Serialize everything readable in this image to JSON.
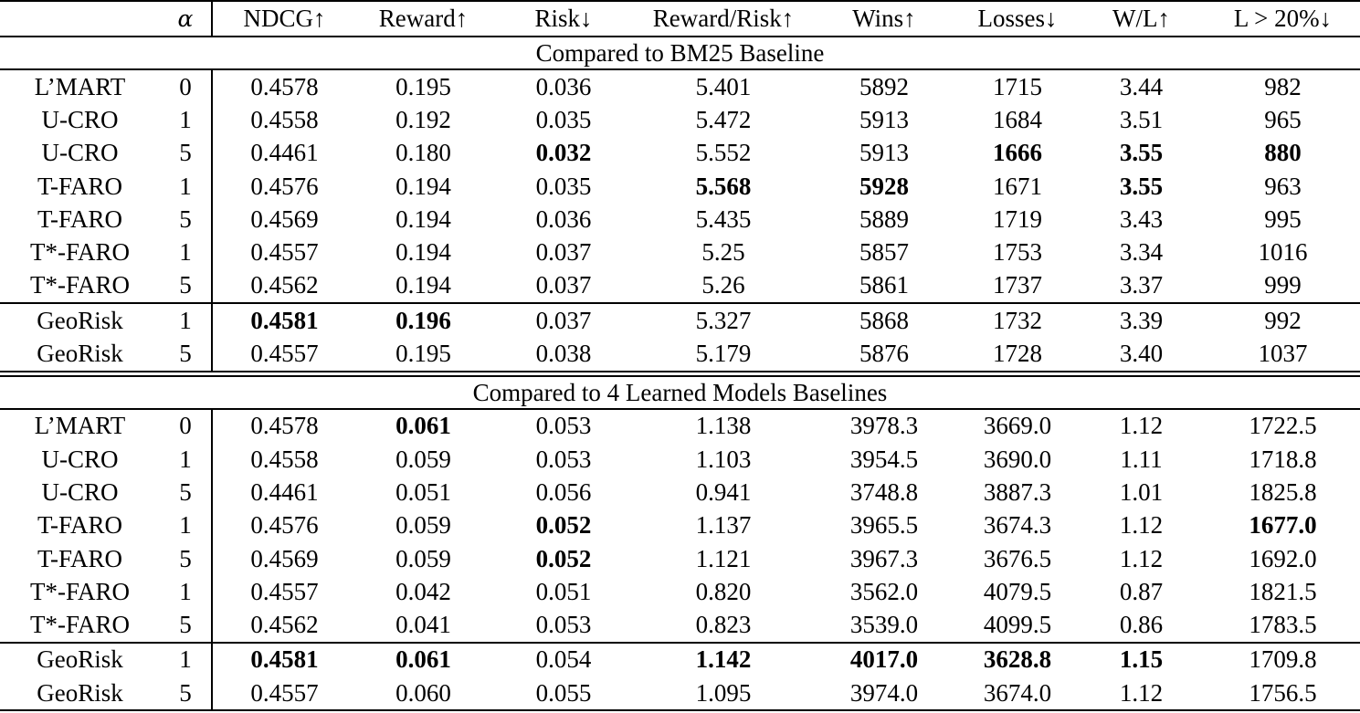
{
  "table": {
    "columns": [
      "",
      "α",
      "NDCG↑",
      "Reward↑",
      "Risk↓",
      "Reward/Risk↑",
      "Wins↑",
      "Losses↓",
      "W/L↑",
      "L > 20%↓"
    ],
    "sections": [
      {
        "title": "Compared to BM25 Baseline",
        "groups": [
          {
            "rows": [
              {
                "cells": [
                  "L’MART",
                  "0",
                  "0.4578",
                  "0.195",
                  "0.036",
                  "5.401",
                  "5892",
                  "1715",
                  "3.44",
                  "982"
                ],
                "bold": []
              },
              {
                "cells": [
                  "U-CRO",
                  "1",
                  "0.4558",
                  "0.192",
                  "0.035",
                  "5.472",
                  "5913",
                  "1684",
                  "3.51",
                  "965"
                ],
                "bold": []
              },
              {
                "cells": [
                  "U-CRO",
                  "5",
                  "0.4461",
                  "0.180",
                  "0.032",
                  "5.552",
                  "5913",
                  "1666",
                  "3.55",
                  "880"
                ],
                "bold": [
                  4,
                  7,
                  8,
                  9
                ]
              },
              {
                "cells": [
                  "T-FARO",
                  "1",
                  "0.4576",
                  "0.194",
                  "0.035",
                  "5.568",
                  "5928",
                  "1671",
                  "3.55",
                  "963"
                ],
                "bold": [
                  5,
                  6,
                  8
                ]
              },
              {
                "cells": [
                  "T-FARO",
                  "5",
                  "0.4569",
                  "0.194",
                  "0.036",
                  "5.435",
                  "5889",
                  "1719",
                  "3.43",
                  "995"
                ],
                "bold": []
              },
              {
                "cells": [
                  "T*-FARO",
                  "1",
                  "0.4557",
                  "0.194",
                  "0.037",
                  "5.25",
                  "5857",
                  "1753",
                  "3.34",
                  "1016"
                ],
                "bold": []
              },
              {
                "cells": [
                  "T*-FARO",
                  "5",
                  "0.4562",
                  "0.194",
                  "0.037",
                  "5.26",
                  "5861",
                  "1737",
                  "3.37",
                  "999"
                ],
                "bold": []
              }
            ]
          },
          {
            "rows": [
              {
                "cells": [
                  "GeoRisk",
                  "1",
                  "0.4581",
                  "0.196",
                  "0.037",
                  "5.327",
                  "5868",
                  "1732",
                  "3.39",
                  "992"
                ],
                "bold": [
                  2,
                  3
                ]
              },
              {
                "cells": [
                  "GeoRisk",
                  "5",
                  "0.4557",
                  "0.195",
                  "0.038",
                  "5.179",
                  "5876",
                  "1728",
                  "3.40",
                  "1037"
                ],
                "bold": []
              }
            ]
          }
        ]
      },
      {
        "title": "Compared to 4 Learned Models Baselines",
        "groups": [
          {
            "rows": [
              {
                "cells": [
                  "L’MART",
                  "0",
                  "0.4578",
                  "0.061",
                  "0.053",
                  "1.138",
                  "3978.3",
                  "3669.0",
                  "1.12",
                  "1722.5"
                ],
                "bold": [
                  3
                ]
              },
              {
                "cells": [
                  "U-CRO",
                  "1",
                  "0.4558",
                  "0.059",
                  "0.053",
                  "1.103",
                  "3954.5",
                  "3690.0",
                  "1.11",
                  "1718.8"
                ],
                "bold": []
              },
              {
                "cells": [
                  "U-CRO",
                  "5",
                  "0.4461",
                  "0.051",
                  "0.056",
                  "0.941",
                  "3748.8",
                  "3887.3",
                  "1.01",
                  "1825.8"
                ],
                "bold": []
              },
              {
                "cells": [
                  "T-FARO",
                  "1",
                  "0.4576",
                  "0.059",
                  "0.052",
                  "1.137",
                  "3965.5",
                  "3674.3",
                  "1.12",
                  "1677.0"
                ],
                "bold": [
                  4,
                  9
                ]
              },
              {
                "cells": [
                  "T-FARO",
                  "5",
                  "0.4569",
                  "0.059",
                  "0.052",
                  "1.121",
                  "3967.3",
                  "3676.5",
                  "1.12",
                  "1692.0"
                ],
                "bold": [
                  4
                ]
              },
              {
                "cells": [
                  "T*-FARO",
                  "1",
                  "0.4557",
                  "0.042",
                  "0.051",
                  "0.820",
                  "3562.0",
                  "4079.5",
                  "0.87",
                  "1821.5"
                ],
                "bold": []
              },
              {
                "cells": [
                  "T*-FARO",
                  "5",
                  "0.4562",
                  "0.041",
                  "0.053",
                  "0.823",
                  "3539.0",
                  "4099.5",
                  "0.86",
                  "1783.5"
                ],
                "bold": []
              }
            ]
          },
          {
            "rows": [
              {
                "cells": [
                  "GeoRisk",
                  "1",
                  "0.4581",
                  "0.061",
                  "0.054",
                  "1.142",
                  "4017.0",
                  "3628.8",
                  "1.15",
                  "1709.8"
                ],
                "bold": [
                  2,
                  3,
                  5,
                  6,
                  7,
                  8
                ]
              },
              {
                "cells": [
                  "GeoRisk",
                  "5",
                  "0.4557",
                  "0.060",
                  "0.055",
                  "1.095",
                  "3974.0",
                  "3674.0",
                  "1.12",
                  "1756.5"
                ],
                "bold": []
              }
            ]
          }
        ]
      }
    ]
  }
}
